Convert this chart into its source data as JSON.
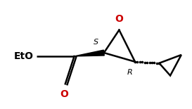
{
  "bg_color": "#ffffff",
  "line_color": "#000000",
  "text_color": "#000000",
  "red_color": "#cc0000",
  "label_EtO": "EtO",
  "label_S": "S",
  "label_R": "R",
  "label_O_epoxide": "O",
  "label_O_carbonyl": "O",
  "font_size_EtO": 10,
  "font_size_O": 10,
  "font_size_stereo": 8,
  "figsize": [
    2.73,
    1.55
  ],
  "dpi": 100,
  "lw": 1.8
}
